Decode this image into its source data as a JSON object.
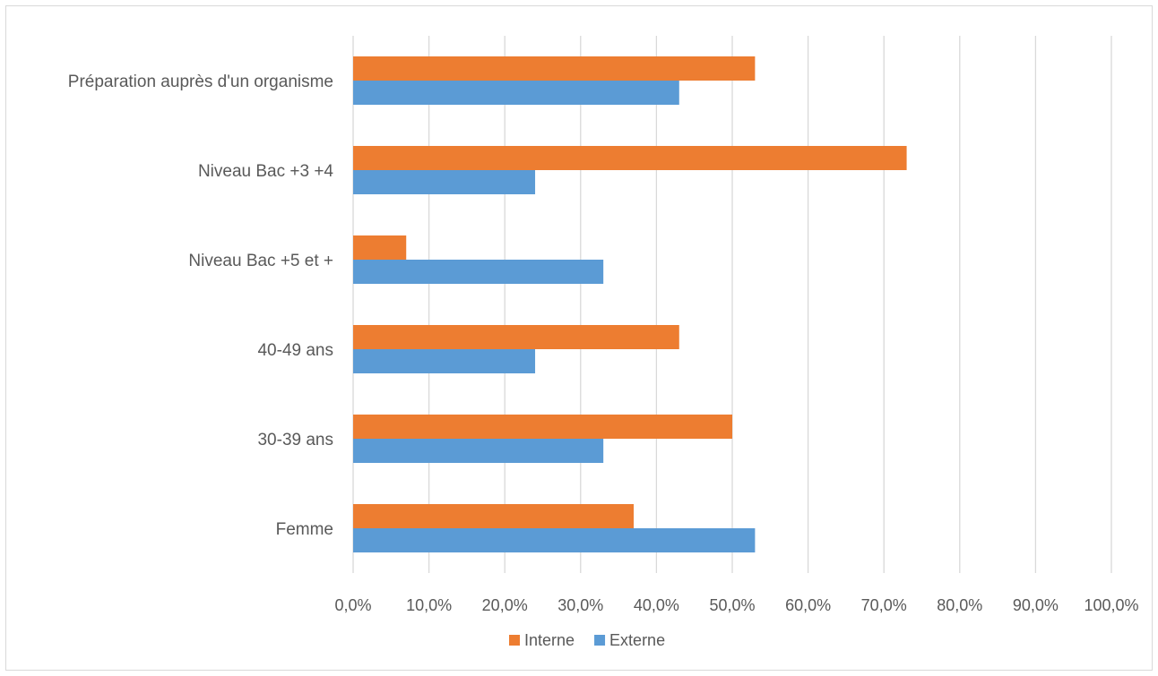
{
  "chart_data": {
    "type": "bar",
    "orientation": "horizontal",
    "categories": [
      "Préparation auprès d'un organisme",
      "Niveau Bac +3 +4",
      "Niveau Bac +5 et +",
      "40-49 ans",
      "30-39 ans",
      "Femme"
    ],
    "series": [
      {
        "name": "Interne",
        "color": "#ED7D31",
        "values": [
          53,
          73,
          7,
          43,
          50,
          37
        ]
      },
      {
        "name": "Externe",
        "color": "#5B9BD5",
        "values": [
          43,
          24,
          33,
          24,
          33,
          53
        ]
      }
    ],
    "xlim": [
      0,
      100
    ],
    "x_ticks": [
      "0,0%",
      "10,0%",
      "20,0%",
      "30,0%",
      "40,0%",
      "50,0%",
      "60,0%",
      "70,0%",
      "80,0%",
      "90,0%",
      "100,0%"
    ],
    "grid": true,
    "legend_position": "bottom",
    "title": "",
    "xlabel": "",
    "ylabel": ""
  }
}
